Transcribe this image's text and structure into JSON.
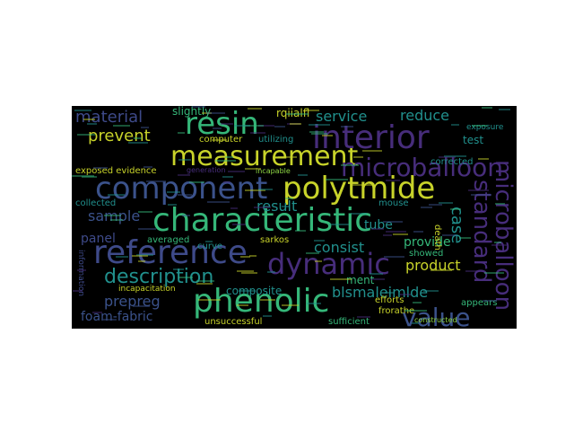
{
  "wordcloud": {
    "palette": {
      "green": "#35b779",
      "teal": "#21908d",
      "blue": "#3b528b",
      "purple": "#472d7b",
      "yellow": "#c8d32a",
      "lime": "#8fd744",
      "dark": "#3e4a89"
    },
    "words": {
      "characteristic": "characteristic",
      "reference": "reference",
      "phenolic": "phenolic",
      "component": "component",
      "polytmide": "polytmide",
      "measurement": "measurement",
      "interior": "interior",
      "dynamic": "dynamic",
      "resin": "resin",
      "microballoon": "microballoon",
      "microballoon_v": "microballoon",
      "standard": "standard",
      "value": "value",
      "description": "description",
      "material": "material",
      "prevent": "prevent",
      "service": "service",
      "reduce": "reduce",
      "result": "result",
      "sample": "sample",
      "consist": "consist",
      "case": "case",
      "product": "product",
      "prepreg": "prepreg",
      "blsmaleimlde": "blsmaleimlde",
      "foam_fabric": "foam-fabric",
      "panel": "panel",
      "tube": "tube",
      "provide": "provide",
      "composite": "composite",
      "slightly": "slightly",
      "rqiialfl": "rqiialfl",
      "computer": "computer",
      "utilizing": "utilizing",
      "exposed_evidence": "exposed evidence",
      "collected": "collected",
      "averaged": "averaged",
      "curve": "curve",
      "sarkos": "sarkos",
      "incapacitation": "incapacitation",
      "unsuccessful": "unsuccessful",
      "sufficient": "sufficient",
      "efforts": "efforts",
      "frorathe": "frorathe",
      "showed": "showed",
      "mouse": "mouse",
      "ment": "ment",
      "test": "test",
      "corrected": "corrected",
      "appears": "appears",
      "exposure": "exposure",
      "death": "death",
      "information": "information",
      "incapable": "incapable",
      "constructed": "constructed",
      "generation": "generation"
    }
  }
}
